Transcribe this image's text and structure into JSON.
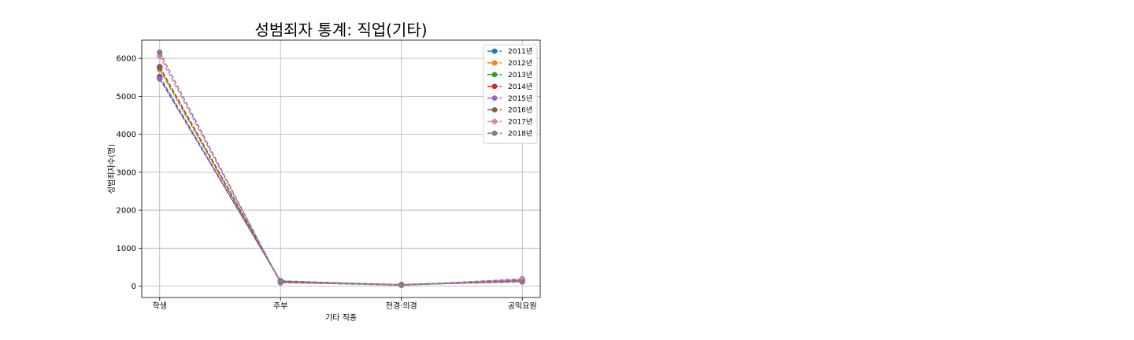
{
  "chart_data": {
    "type": "line",
    "title": "성범죄자 통계: 직업(기타)",
    "xlabel": "기타 직종",
    "ylabel": "성범죄자수(명)",
    "categories": [
      "학생",
      "주부",
      "전경·의경",
      "공익요원"
    ],
    "ylim": [
      -300,
      6480
    ],
    "yticks": [
      0,
      1000,
      2000,
      3000,
      4000,
      5000,
      6000
    ],
    "grid": true,
    "line_style": "dashed",
    "marker": "circle",
    "legend_position": "top-right",
    "series": [
      {
        "name": "2011년",
        "color": "#1f77b4",
        "values": [
          5520,
          120,
          30,
          130
        ]
      },
      {
        "name": "2012년",
        "color": "#ff7f0e",
        "values": [
          5700,
          110,
          35,
          140
        ]
      },
      {
        "name": "2013년",
        "color": "#2ca02c",
        "values": [
          5760,
          100,
          25,
          150
        ]
      },
      {
        "name": "2014년",
        "color": "#d62728",
        "values": [
          5480,
          130,
          30,
          160
        ]
      },
      {
        "name": "2015년",
        "color": "#9467bd",
        "values": [
          5460,
          140,
          20,
          190
        ]
      },
      {
        "name": "2016년",
        "color": "#8c564b",
        "values": [
          5780,
          120,
          40,
          150
        ]
      },
      {
        "name": "2017년",
        "color": "#e377c2",
        "values": [
          6060,
          100,
          30,
          170
        ]
      },
      {
        "name": "2018년",
        "color": "#7f7f7f",
        "values": [
          6160,
          90,
          40,
          110
        ]
      }
    ]
  }
}
